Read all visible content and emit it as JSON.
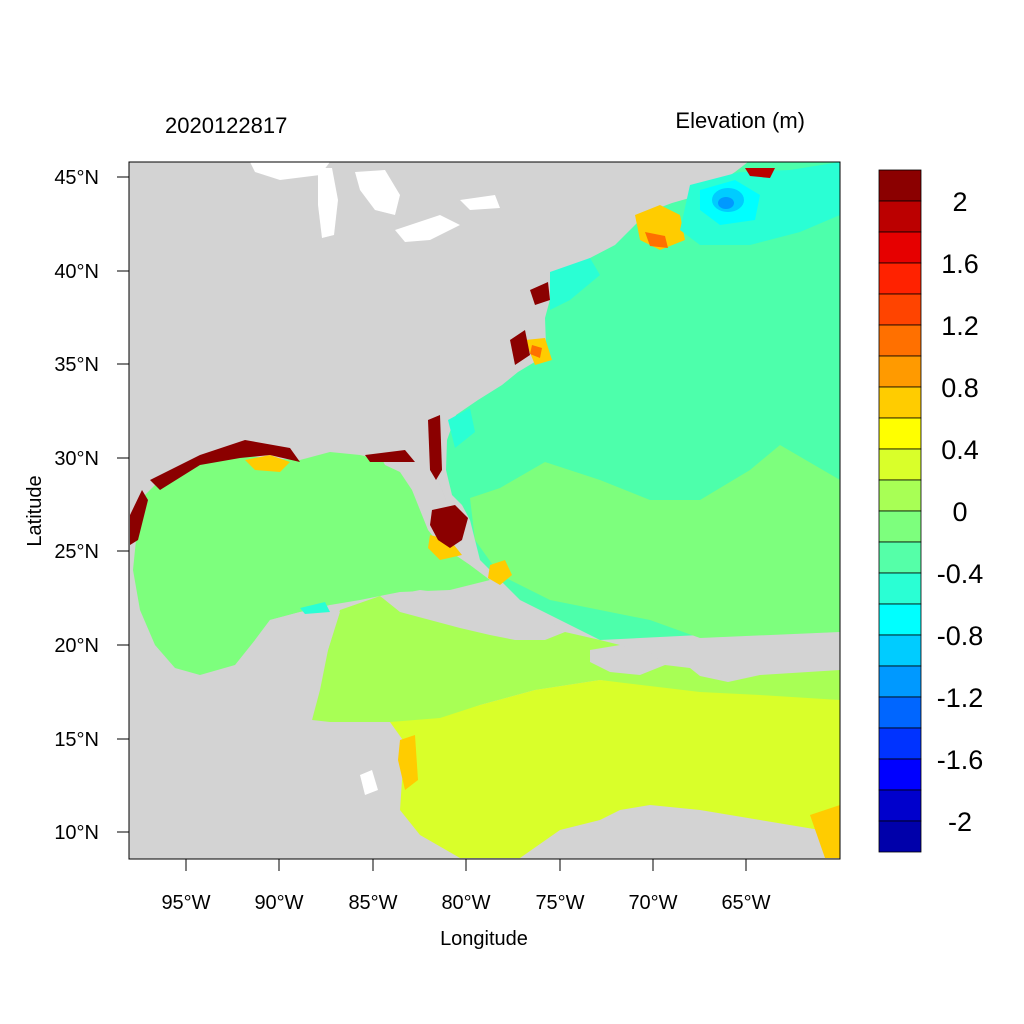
{
  "title_left": "2020122817",
  "title_right": "Elevation (m)",
  "xlabel": "Longitude",
  "ylabel": "Latitude",
  "lon_ticks": [
    "95°W",
    "90°W",
    "85°W",
    "80°W",
    "75°W",
    "70°W",
    "65°W"
  ],
  "lat_ticks": [
    "45°N",
    "40°N",
    "35°N",
    "30°N",
    "25°N",
    "20°N",
    "15°N",
    "10°N"
  ],
  "colorbar_labels": [
    "2",
    "1.6",
    "1.2",
    "0.8",
    "0.4",
    "0",
    "-0.4",
    "-0.8",
    "-1.2",
    "-1.6",
    "-2"
  ],
  "colorbar_colors": [
    "#8b0000",
    "#bb0000",
    "#e60000",
    "#ff2200",
    "#ff4400",
    "#ff7000",
    "#ff9a00",
    "#ffcc00",
    "#ffff00",
    "#d9ff2a",
    "#a8ff55",
    "#7dff7d",
    "#55ffa8",
    "#2affd4",
    "#00ffff",
    "#00ccff",
    "#0099ff",
    "#0066ff",
    "#0033ff",
    "#0000ff",
    "#0000cc",
    "#0000aa"
  ],
  "colors": {
    "land": "#d3d3d3",
    "lakes": "#ffffff",
    "atlantic": "#4dffab",
    "gulf": "#7dff7d",
    "caribbean_north": "#a8ff55",
    "caribbean_south": "#d9ff2a",
    "surge_high": "#8b0000",
    "negative": "#00ffff"
  }
}
